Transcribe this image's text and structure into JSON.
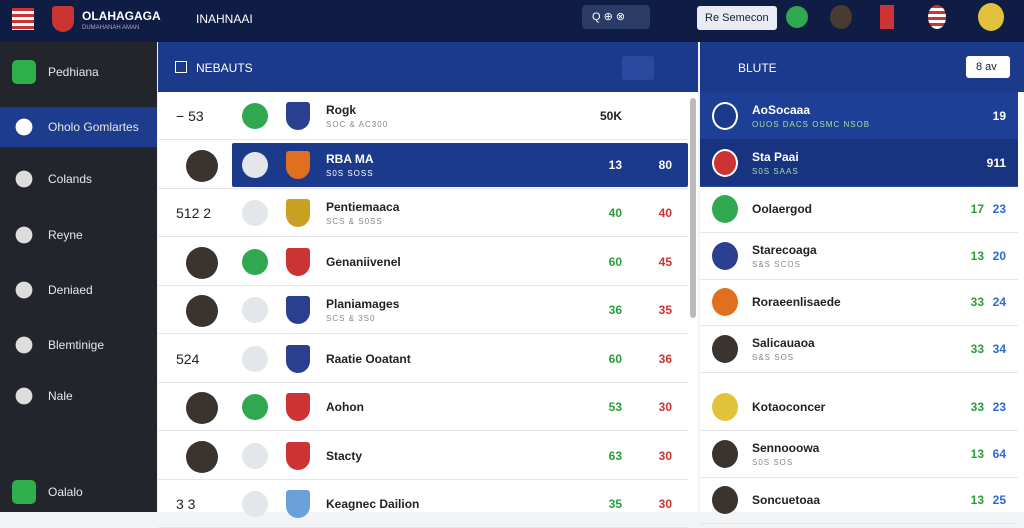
{
  "topbar": {
    "brand": "OLAHAGAGA",
    "brand_sub": "DUMAHANAH AMAN",
    "section": "INAHNAAI",
    "search": "Q ⊕ ⊗",
    "button": "Re Semecon"
  },
  "sidebar": {
    "items": [
      "Pedhiana",
      "Oholo Gomlartes",
      "Colands",
      "Reyne",
      "Deniaed",
      "Blemtinige",
      "Nale",
      "Oalalo"
    ],
    "active": 1
  },
  "middle": {
    "title": "NEBAUTS",
    "rows": [
      {
        "rank": "− 53",
        "name": "Rogk",
        "sub": "SOC & AC300",
        "v1": "50K"
      },
      {
        "name": "RBA MA",
        "sub": "S0S SOSS",
        "v1": "13",
        "v2": "80",
        "selected": true
      },
      {
        "rank": "512 2",
        "name": "Pentiemaaca",
        "sub": "SCS & S0SS",
        "v1": "40",
        "v2": "40"
      },
      {
        "name": "Genaniivenel",
        "v1": "60",
        "v2": "45"
      },
      {
        "name": "Planiamages",
        "sub": "SCS & 3S0",
        "v1": "36",
        "v2": "35"
      },
      {
        "rank": "524",
        "name": "Raatie Ooatant",
        "v1": "60",
        "v2": "36"
      },
      {
        "name": "Aohon",
        "v1": "53",
        "v2": "30"
      },
      {
        "name": "Stacty",
        "v1": "63",
        "v2": "30"
      },
      {
        "rank": "3 3",
        "name": "Keagnec Dailion",
        "v1": "35",
        "v2": "30"
      }
    ]
  },
  "right": {
    "title": "BLUTE",
    "button": "8 av",
    "rows": [
      {
        "name": "AoSocaaa",
        "sub": "OUOS DACS OSMC NSOB",
        "v2": "19",
        "highlight": true
      },
      {
        "name": "Sta Paai",
        "sub": "S0S SAAS",
        "v2": "911",
        "highlight": true
      },
      {
        "name": "Oolaergod",
        "v1": "17",
        "v2": "23"
      },
      {
        "name": "Starecoaga",
        "sub": "S&S SCOS",
        "v1": "13",
        "v2": "20"
      },
      {
        "name": "Roraeenlisaede",
        "v1": "33",
        "v2": "24"
      },
      {
        "name": "Salicauaoa",
        "sub": "S&S SOS",
        "v1": "33",
        "v2": "34"
      },
      {
        "name": "Kotaoconcer",
        "v1": "33",
        "v2": "23"
      },
      {
        "name": "Sennooowa",
        "sub": "S0S SOS",
        "v1": "13",
        "v2": "64"
      },
      {
        "name": "Soncuetoaa",
        "v1": "13",
        "v2": "25"
      }
    ]
  }
}
